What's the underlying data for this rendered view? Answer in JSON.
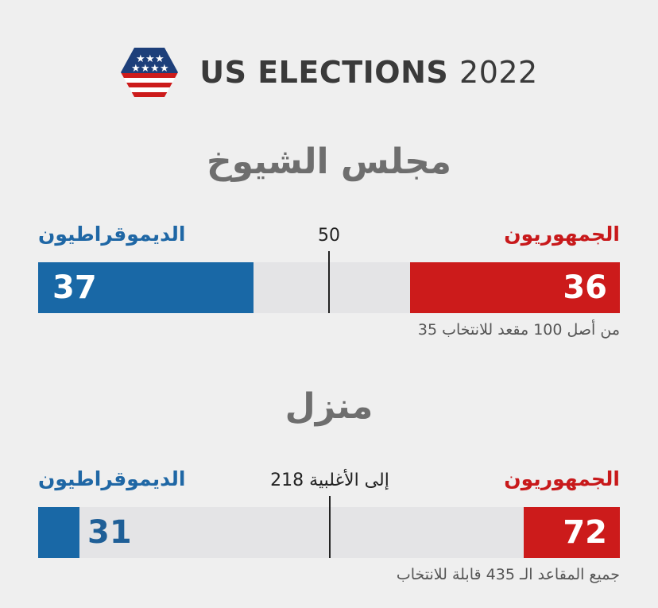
{
  "header": {
    "title_main": "US ELECTIONS",
    "title_year": "2022",
    "logo_icon": "us-flag-hexagon-icon"
  },
  "colors": {
    "democrat": "#1968a6",
    "republican": "#cc1b1b",
    "remaining": "#e4e4e6",
    "background": "#efefef"
  },
  "chart_data": [
    {
      "type": "bar",
      "title": "مجلس الشيوخ",
      "total_seats": 100,
      "threshold": 50,
      "threshold_label": "50",
      "series": [
        {
          "name": "الديموقراطيون",
          "values": [
            37
          ]
        },
        {
          "name": "الجمهوريون",
          "values": [
            36
          ]
        }
      ],
      "note": "من أصل 100 مقعد للانتخاب 35"
    },
    {
      "type": "bar",
      "title": "منزل",
      "total_seats": 435,
      "threshold": 218,
      "threshold_label": "إلى الأغلبية 218",
      "series": [
        {
          "name": "الديموقراطيون",
          "values": [
            31
          ]
        },
        {
          "name": "الجمهوريون",
          "values": [
            72
          ]
        }
      ],
      "note": "جميع المقاعد الـ 435 قابلة للانتخاب"
    }
  ]
}
